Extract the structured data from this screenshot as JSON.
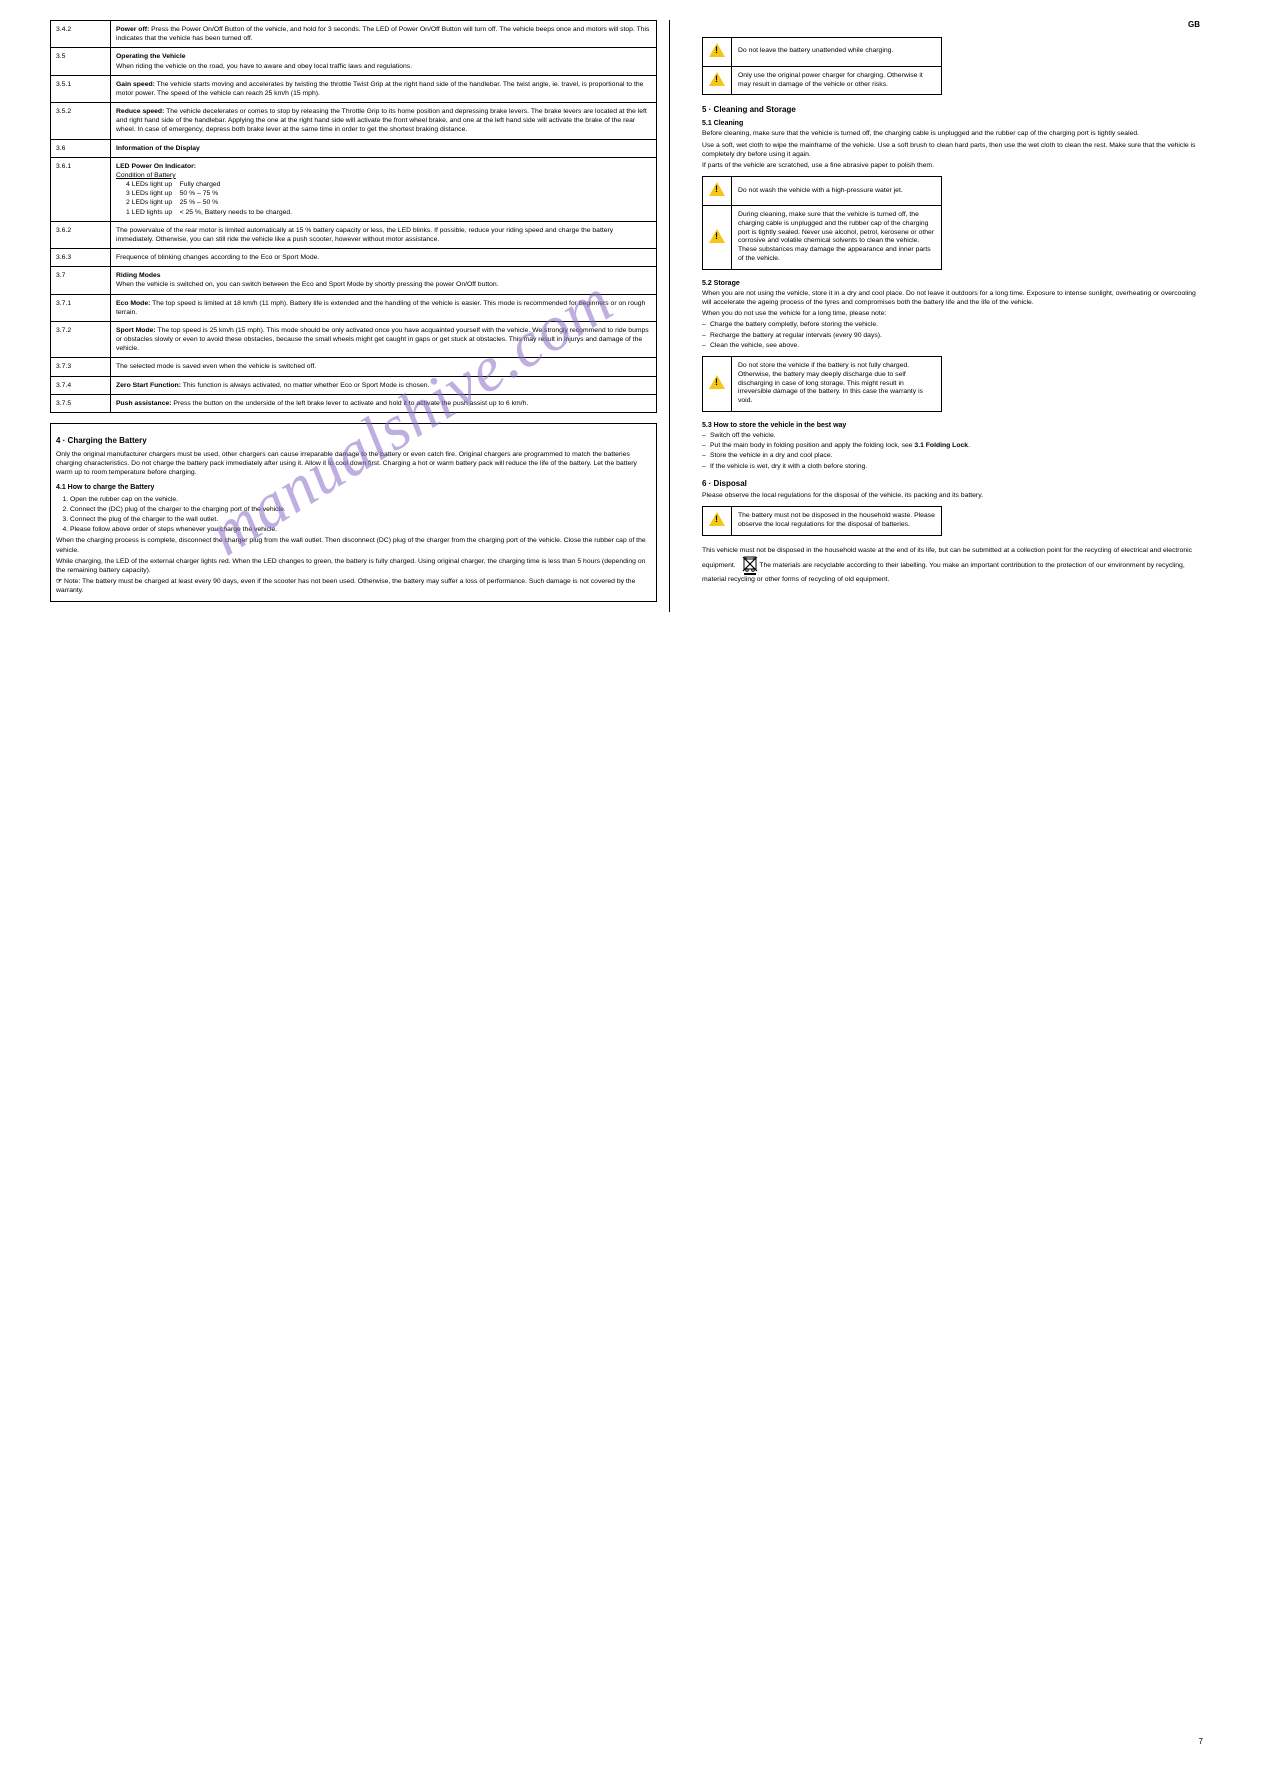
{
  "watermark": "manualshive.com",
  "page_number": "7",
  "left": {
    "spec_rows": [
      {
        "k": "3.4.2",
        "v_html": "<b>Power off:</b> Press the Power On/Off Button of the vehicle, and hold for 3 seconds. The LED of Power On/Off Button will turn off. The vehicle beeps once and motors will stop. This indicates that the vehicle has been turned off."
      },
      {
        "k": "3.5",
        "v_html": "<b>Operating the Vehicle</b><br>When riding the vehicle on the road, you have to aware and obey local traffic laws and regulations."
      },
      {
        "k": "3.5.1",
        "v_html": "<b>Gain speed:</b> The vehicle starts moving and accelerates by twisting the throttle Twist Grip at the right hand side of the handlebar. The twist angle, ie. travel, is proportional to the motor power. The speed of the vehicle can reach 25 km/h (15 mph)."
      },
      {
        "k": "3.5.2",
        "v_html": "<b>Reduce speed:</b> The vehicle decelerates or comes to stop by releasing the Throttle Grip to its home position and depressing brake levers. The brake levers are located at the left and right hand side of the handlebar. Applying the one at the right hand side will activate the front wheel brake, and one at the left hand side will activate the brake of the rear wheel. In case of emergency, depress both brake lever at the same time in order to get the shortest braking distance."
      },
      {
        "k": "3.6",
        "v_html": "<b>Information of the Display</b>"
      },
      {
        "k": "3.6.1",
        "v_html": "<b>LED Power On Indicator:</b><br><span class='u'>Condition of Battery</span><br><span class='indent'>4 LEDs light up &nbsp;&nbsp; Fully charged<br>3 LEDs light up &nbsp;&nbsp; 50 % – 75 %<br>2 LEDs light up &nbsp;&nbsp; 25 % – 50 %<br>1 LED lights up &nbsp;&nbsp; &lt; 25 %, Battery needs to be charged.</span>"
      },
      {
        "k": "3.6.2",
        "v_html": "The powervalue of the rear motor is limited automatically at 15 % battery capacity or less, the LED blinks. If possible, reduce your riding speed and charge the battery immediately. Otherwise, you can still ride the vehicle like a push scooter, however without motor assistance."
      },
      {
        "k": "3.6.3",
        "v_html": "Frequence of blinking changes according to the Eco or Sport Mode."
      },
      {
        "k": "3.7",
        "v_html": "<b>Riding Modes</b><br>When the vehicle is switched on, you can switch between the Eco and Sport Mode by shortly pressing the power On/Off button."
      },
      {
        "k": "3.7.1",
        "v_html": "<b>Eco Mode:</b> The top speed is limited at 18 km/h (11 mph). Battery life is extended and the handling of the vehicle is easier. This mode is recommended for beginners or on rough terrain."
      },
      {
        "k": "3.7.2",
        "v_html": "<b>Sport Mode:</b> The top speed is 25 km/h (15 mph). This mode should be only activated once you have acquainted yourself with the vehicle. We strongly recommend to ride bumps or obstacles slowly or even to avoid these obstacles, because the small wheels might get caught in gaps or get stuck at obstacles. This may result in injurys and damage of the vehicle."
      },
      {
        "k": "3.7.3",
        "v_html": "The selected mode is saved even when the vehicle is switched off."
      },
      {
        "k": "3.7.4",
        "v_html": "<b>Zero Start Function:</b> This function is always activated, no matter whether Eco or Sport Mode is chosen."
      },
      {
        "k": "3.7.5",
        "v_html": "<b>Push assistance:</b> Press the button on the underside of the left brake lever to activate and hold it to activate the push assist up to 6 km/h."
      }
    ],
    "box": {
      "h4": "4 · Charging the Battery",
      "p1": "Only the original manufacturer chargers must be used, other chargers can cause irreparable damage to the battery or even catch fire. Original chargers are programmed to match the batteries charging characteristics. Do not charge the battery pack immediately after using it. Allow it to cool down first. Charging a hot or warm battery pack will reduce the life of the battery. Let the battery warm up to room temperature before charging.",
      "h41": "4.1 How to charge the Battery",
      "ol": [
        "Open the rubber cap on the vehicle.",
        "Connect the (DC) plug of the charger to the charging port of the vehicle.",
        "Connect the plug of the charger to the wall outlet.",
        "Please follow above order of steps whenever you charge the vehicle."
      ],
      "p2": "When the charging process is complete, disconnect the charger plug from the wall outlet. Then disconnect (DC) plug of the charger from the charging port of the vehicle. Close the rubber cap of the vehicle.",
      "p3": "While charging, the LED of the external charger lights red. When the LED changes to green, the battery is fully charged. Using original charger, the charging time is less than 5 hours (depending on the remaining battery capacity).",
      "note": "Note: The battery must be charged at least every 90 days, even if the scooter has not been used. Otherwise, the battery may suffer a loss of performance. Such damage is not covered by the warranty."
    }
  },
  "right": {
    "header": "GB",
    "warn1": [
      {
        "t": "Do not leave the battery unattended while charging."
      },
      {
        "t": "Only use the original power charger for charging. Otherwise it may result in damage of the vehicle or other risks."
      }
    ],
    "s5_h": "5 · Cleaning and Storage",
    "s51_h": "5.1 Cleaning",
    "s51_p1": "Before cleaning, make sure that the vehicle is turned off, the charging cable is unplugged and the rubber cap of the charging port is tightly sealed.",
    "s51_p2": "Use a soft, wet cloth to wipe the mainframe of the vehicle. Use a soft brush to clean hard parts, then use the wet cloth to clean the rest. Make sure that the vehicle is completely dry before using it again.",
    "s51_p3": "If parts of the vehicle are scratched, use a fine abrasive paper to polish them.",
    "warn2": [
      {
        "t": "Do not wash the vehicle with a high-pressure water jet."
      },
      {
        "t": "During cleaning, make sure that the vehicle is turned off, the charging cable is unplugged and the rubber cap of the charging port is tightly sealed. Never use alcohol, petrol, kerosene or other corrosive and volatile chemical solvents to clean the vehicle. These substances may damage the appearance and inner parts of the vehicle."
      }
    ],
    "s52_h": "5.2 Storage",
    "s52_p1": "When you are not using the vehicle, store it in a dry and cool place. Do not leave it outdoors for a long time. Exposure to intense sunlight, overheating or overcooling will accelerate the ageing process of the tyres and compromises both the battery life and the life of the vehicle.",
    "s52_p2": "When you do not use the vehicle for a long time, please note:",
    "s52_ul": [
      "Charge the battery completly, before storing the vehicle.",
      "Recharge the battery at regular intervals (every 90 days).",
      "Clean the vehicle, see above."
    ],
    "warn3": [
      {
        "t": "Do not store the vehicle if the battery is not fully charged. Otherwise, the battery may deeply discharge due to self discharging in case of long storage. This might result in irreversible damage of the battery. In this case the warranty is void."
      }
    ],
    "s53_h": "5.3 How to store the vehicle in the best way",
    "s53_ul": [
      "Switch off the vehicle.",
      "Put the main body in folding position and apply the folding lock, see <b>3.1 Folding Lock</b>.",
      "Store the vehicle in a dry and cool place.",
      "If the vehicle is wet, dry it with a cloth before storing."
    ],
    "s6_h": "6 · Disposal",
    "s6_p1": "Please observe the local regulations for the disposal of the vehicle, its packing and its battery.",
    "warn4": [
      {
        "t": "The battery must not be disposed in the household waste. Please observe the local regulations for the disposal of batteries."
      }
    ],
    "s6_p2_pre": "This vehicle must not be disposed in the household waste at the end of its life, but can be submitted at a collection point for the recycling of electrical and electronic equipment. ",
    "s6_p2_post": " The materials are recyclable according to their labelling. You make an important contribution to the protection of our environment by recycling, material recycling or other forms of recycling of old equipment."
  }
}
